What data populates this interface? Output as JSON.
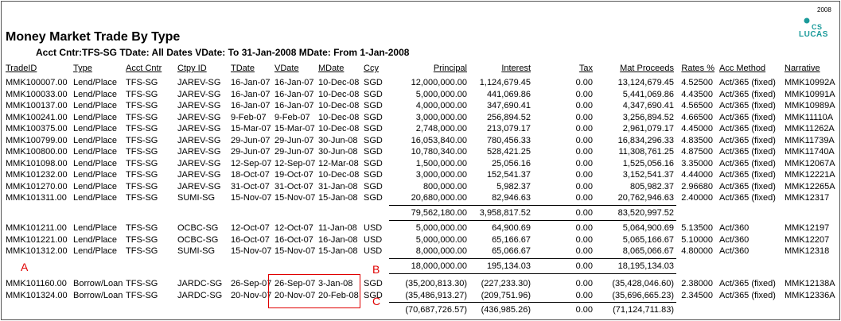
{
  "page_number": "2008",
  "logo": {
    "line1": "CS",
    "line2": "LUCAS"
  },
  "title": "Money Market Trade By Type",
  "subtitle": "Acct Cntr:TFS-SG TDate: All Dates VDate: To  31-Jan-2008 MDate: From  1-Jan-2008",
  "columns": [
    "TradeID",
    "Type",
    "Acct Cntr",
    "Ctpy ID",
    "TDate",
    "VDate",
    "MDate",
    "Ccy",
    "Principal",
    "Interest",
    "Tax",
    "Mat Proceeds",
    "Rates %",
    "Acc Method",
    "Narrative"
  ],
  "groups": [
    {
      "rows": [
        [
          "MMK100007.00",
          "Lend/Place",
          "TFS-SG",
          "JAREV-SG",
          "16-Jan-07",
          "16-Jan-07",
          "10-Dec-08",
          "SGD",
          "12,000,000.00",
          "1,124,679.45",
          "0.00",
          "13,124,679.45",
          "4.52500",
          "Act/365 (fixed)",
          "MMK10992A"
        ],
        [
          "MMK100033.00",
          "Lend/Place",
          "TFS-SG",
          "JAREV-SG",
          "16-Jan-07",
          "16-Jan-07",
          "10-Dec-08",
          "SGD",
          "5,000,000.00",
          "441,069.86",
          "0.00",
          "5,441,069.86",
          "4.43500",
          "Act/365 (fixed)",
          "MMK10991A"
        ],
        [
          "MMK100137.00",
          "Lend/Place",
          "TFS-SG",
          "JAREV-SG",
          "16-Jan-07",
          "16-Jan-07",
          "10-Dec-08",
          "SGD",
          "4,000,000.00",
          "347,690.41",
          "0.00",
          "4,347,690.41",
          "4.56500",
          "Act/365 (fixed)",
          "MMK10989A"
        ],
        [
          "MMK100241.00",
          "Lend/Place",
          "TFS-SG",
          "JAREV-SG",
          "9-Feb-07",
          "9-Feb-07",
          "10-Dec-08",
          "SGD",
          "3,000,000.00",
          "256,894.52",
          "0.00",
          "3,256,894.52",
          "4.66500",
          "Act/365 (fixed)",
          "MMK11110A"
        ],
        [
          "MMK100375.00",
          "Lend/Place",
          "TFS-SG",
          "JAREV-SG",
          "15-Mar-07",
          "15-Mar-07",
          "10-Dec-08",
          "SGD",
          "2,748,000.00",
          "213,079.17",
          "0.00",
          "2,961,079.17",
          "4.45000",
          "Act/365 (fixed)",
          "MMK11262A"
        ],
        [
          "MMK100799.00",
          "Lend/Place",
          "TFS-SG",
          "JAREV-SG",
          "29-Jun-07",
          "29-Jun-07",
          "30-Jun-08",
          "SGD",
          "16,053,840.00",
          "780,456.33",
          "0.00",
          "16,834,296.33",
          "4.83500",
          "Act/365 (fixed)",
          "MMK11739A"
        ],
        [
          "MMK100800.00",
          "Lend/Place",
          "TFS-SG",
          "JAREV-SG",
          "29-Jun-07",
          "29-Jun-07",
          "30-Jun-08",
          "SGD",
          "10,780,340.00",
          "528,421.25",
          "0.00",
          "11,308,761.25",
          "4.87500",
          "Act/365 (fixed)",
          "MMK11740A"
        ],
        [
          "MMK101098.00",
          "Lend/Place",
          "TFS-SG",
          "JAREV-SG",
          "12-Sep-07",
          "12-Sep-07",
          "12-Mar-08",
          "SGD",
          "1,500,000.00",
          "25,056.16",
          "0.00",
          "1,525,056.16",
          "3.35000",
          "Act/365 (fixed)",
          "MMK12067A"
        ],
        [
          "MMK101232.00",
          "Lend/Place",
          "TFS-SG",
          "JAREV-SG",
          "18-Oct-07",
          "19-Oct-07",
          "10-Dec-08",
          "SGD",
          "3,000,000.00",
          "152,541.37",
          "0.00",
          "3,152,541.37",
          "4.44000",
          "Act/365 (fixed)",
          "MMK12221A"
        ],
        [
          "MMK101270.00",
          "Lend/Place",
          "TFS-SG",
          "JAREV-SG",
          "31-Oct-07",
          "31-Oct-07",
          "31-Jan-08",
          "SGD",
          "800,000.00",
          "5,982.37",
          "0.00",
          "805,982.37",
          "2.96680",
          "Act/365 (fixed)",
          "MMK12265A"
        ],
        [
          "MMK101311.00",
          "Lend/Place",
          "TFS-SG",
          "SUMI-SG",
          "15-Nov-07",
          "15-Nov-07",
          "15-Jan-08",
          "SGD",
          "20,680,000.00",
          "82,946.63",
          "0.00",
          "20,762,946.63",
          "2.40000",
          "Act/365 (fixed)",
          "MMK12317"
        ]
      ],
      "total": [
        "79,562,180.00",
        "3,958,817.52",
        "0.00",
        "83,520,997.52"
      ]
    },
    {
      "rows": [
        [
          "MMK101211.00",
          "Lend/Place",
          "TFS-SG",
          "OCBC-SG",
          "12-Oct-07",
          "12-Oct-07",
          "11-Jan-08",
          "USD",
          "5,000,000.00",
          "64,900.69",
          "0.00",
          "5,064,900.69",
          "5.13500",
          "Act/360",
          "MMK12197"
        ],
        [
          "MMK101221.00",
          "Lend/Place",
          "TFS-SG",
          "OCBC-SG",
          "16-Oct-07",
          "16-Oct-07",
          "16-Jan-08",
          "USD",
          "5,000,000.00",
          "65,166.67",
          "0.00",
          "5,065,166.67",
          "5.10000",
          "Act/360",
          "MMK12207"
        ],
        [
          "MMK101312.00",
          "Lend/Place",
          "TFS-SG",
          "SUMI-SG",
          "15-Nov-07",
          "15-Nov-07",
          "15-Jan-08",
          "USD",
          "8,000,000.00",
          "65,066.67",
          "0.00",
          "8,065,066.67",
          "4.80000",
          "Act/360",
          "MMK12318"
        ]
      ],
      "total": [
        "18,000,000.00",
        "195,134.03",
        "0.00",
        "18,195,134.03"
      ]
    },
    {
      "rows": [
        [
          "MMK101160.00",
          "Borrow/Loan",
          "TFS-SG",
          "JARDC-SG",
          "26-Sep-07",
          "26-Sep-07",
          "3-Jan-08",
          "SGD",
          "(35,200,813.30)",
          "(227,233.30)",
          "0.00",
          "(35,428,046.60)",
          "2.38000",
          "Act/365 (fixed)",
          "MMK12138A"
        ],
        [
          "MMK101324.00",
          "Borrow/Loan",
          "TFS-SG",
          "JARDC-SG",
          "20-Nov-07",
          "20-Nov-07",
          "20-Feb-08",
          "SGD",
          "(35,486,913.27)",
          "(209,751.96)",
          "0.00",
          "(35,696,665.23)",
          "2.34500",
          "Act/365 (fixed)",
          "MMK12336A"
        ]
      ],
      "total": [
        "(70,687,726.57)",
        "(436,985.26)",
        "0.00",
        "(71,124,711.83)"
      ]
    }
  ],
  "annotations": {
    "a": "A",
    "b": "B",
    "c": "C",
    "color": "#e00000"
  }
}
